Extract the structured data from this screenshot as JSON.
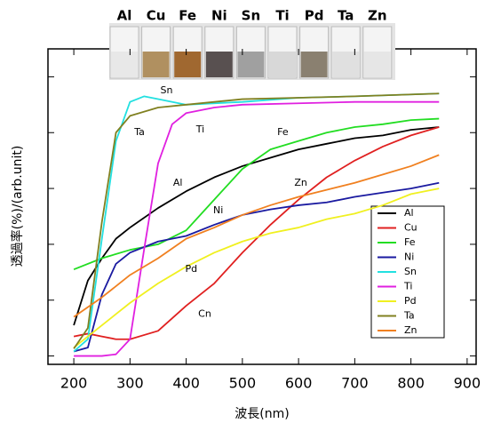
{
  "chart_data": {
    "type": "line",
    "vial_labels": [
      "Al",
      "Cu",
      "Fe",
      "Ni",
      "Sn",
      "Ti",
      "Pd",
      "Ta",
      "Zn"
    ],
    "xlabel": "波長(nm)",
    "ylabel": "透過率(%)/(arb.unit)",
    "xlim": [
      154,
      916
    ],
    "ylim": [
      -3,
      110
    ],
    "xticks": [
      200,
      300,
      400,
      500,
      600,
      700,
      800,
      900
    ],
    "yticks": [
      0,
      20,
      40,
      60,
      80,
      100
    ],
    "ytick_labels_shown": false,
    "legend": "lower right",
    "series": [
      {
        "name": "Al",
        "color": "#000000",
        "x": [
          200,
          225,
          250,
          275,
          300,
          350,
          400,
          450,
          500,
          550,
          600,
          650,
          700,
          750,
          800,
          850
        ],
        "values": [
          11,
          27,
          35,
          42,
          46,
          53,
          59,
          64,
          68,
          71,
          74,
          76,
          78,
          79,
          81,
          82
        ]
      },
      {
        "name": "Cu",
        "color": "#e02020",
        "x": [
          200,
          225,
          250,
          275,
          300,
          350,
          400,
          450,
          500,
          550,
          600,
          650,
          700,
          750,
          800,
          850
        ],
        "values": [
          7,
          8,
          7,
          6,
          6,
          9,
          18,
          26,
          37,
          47,
          56,
          64,
          70,
          75,
          79,
          82
        ]
      },
      {
        "name": "Fe",
        "color": "#22dd22",
        "x": [
          200,
          250,
          300,
          350,
          400,
          450,
          500,
          550,
          600,
          650,
          700,
          750,
          800,
          850
        ],
        "values": [
          31,
          35,
          38,
          40,
          45,
          56,
          67,
          74,
          77,
          80,
          82,
          83,
          84.5,
          85
        ]
      },
      {
        "name": "Ni",
        "color": "#1a1aa0",
        "x": [
          200,
          225,
          250,
          275,
          300,
          350,
          400,
          450,
          500,
          550,
          600,
          650,
          700,
          750,
          800,
          850
        ],
        "values": [
          1.6,
          3,
          22,
          33,
          37,
          41,
          43,
          47,
          50.5,
          52.5,
          54,
          55,
          57,
          58.5,
          60,
          62
        ]
      },
      {
        "name": "Sn",
        "color": "#22e0e0",
        "x": [
          200,
          225,
          250,
          275,
          300,
          325,
          350,
          400,
          500,
          600,
          700,
          850
        ],
        "values": [
          1.6,
          6,
          42,
          77,
          91,
          93,
          92,
          90,
          91,
          92.5,
          93,
          94
        ]
      },
      {
        "name": "Ti",
        "color": "#e020e0",
        "x": [
          200,
          250,
          275,
          300,
          325,
          350,
          375,
          400,
          450,
          500,
          600,
          700,
          850
        ],
        "values": [
          0,
          0,
          0.6,
          6,
          38,
          69,
          83,
          87,
          89,
          90,
          90.5,
          91,
          91
        ]
      },
      {
        "name": "Pd",
        "color": "#f0f020",
        "x": [
          200,
          250,
          300,
          350,
          400,
          450,
          500,
          550,
          600,
          650,
          700,
          750,
          800,
          850
        ],
        "values": [
          3,
          11,
          19,
          26,
          32,
          37,
          41,
          44,
          46,
          49,
          51,
          54,
          58,
          60
        ]
      },
      {
        "name": "Ta",
        "color": "#808020",
        "x": [
          200,
          225,
          250,
          275,
          300,
          350,
          400,
          500,
          600,
          700,
          850
        ],
        "values": [
          2.6,
          10,
          48,
          80,
          86,
          89,
          90,
          92,
          92.5,
          93,
          94
        ]
      },
      {
        "name": "Zn",
        "color": "#f08020",
        "x": [
          200,
          250,
          300,
          350,
          400,
          450,
          500,
          550,
          600,
          650,
          700,
          750,
          800,
          850
        ],
        "values": [
          14,
          21,
          29,
          35,
          42,
          46,
          50.5,
          54,
          57,
          59.5,
          62,
          65,
          68,
          72
        ]
      }
    ],
    "annotations": [
      {
        "text": "Sn",
        "x": 365,
        "y": 95
      },
      {
        "text": "Ta",
        "x": 317,
        "y": 80
      },
      {
        "text": "Ti",
        "x": 425,
        "y": 81
      },
      {
        "text": "Fe",
        "x": 572,
        "y": 80
      },
      {
        "text": "Al",
        "x": 385,
        "y": 62
      },
      {
        "text": "Zn",
        "x": 604,
        "y": 62
      },
      {
        "text": "Ni",
        "x": 457,
        "y": 52
      },
      {
        "text": "Pd",
        "x": 409,
        "y": 31
      },
      {
        "text": "Cn",
        "x": 433,
        "y": 15
      }
    ]
  }
}
